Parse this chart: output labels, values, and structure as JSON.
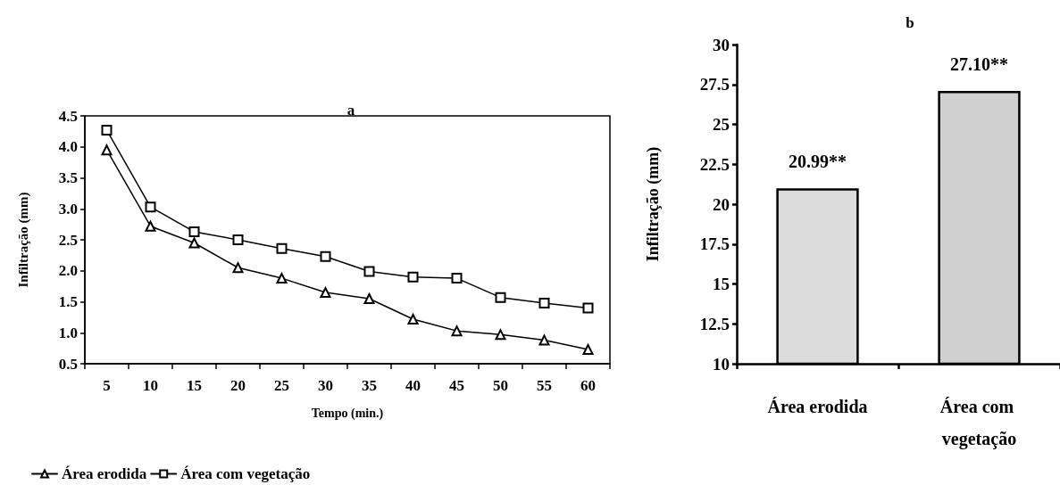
{
  "chart_data": [
    {
      "type": "line",
      "title": "a",
      "xlabel": "Tempo (min.)",
      "ylabel": "Infiltração (mm)",
      "categories": [
        "5",
        "10",
        "15",
        "20",
        "25",
        "30",
        "35",
        "40",
        "45",
        "50",
        "55",
        "60"
      ],
      "series": [
        {
          "name": "Área erodida",
          "color": "#000000",
          "marker": "triangle",
          "values": [
            3.95,
            2.72,
            2.45,
            2.05,
            1.88,
            1.65,
            1.55,
            1.22,
            1.03,
            0.97,
            0.88,
            0.73
          ]
        },
        {
          "name": "Área com vegetação",
          "color": "#000000",
          "marker": "square",
          "values": [
            4.27,
            3.03,
            2.63,
            2.5,
            2.36,
            2.23,
            1.99,
            1.9,
            1.88,
            1.57,
            1.48,
            1.4
          ]
        }
      ],
      "ylim": [
        0.5,
        4.5
      ],
      "yticks": [
        0.5,
        {
          "value": 1,
          "label": "1.0"
        },
        1.5,
        {
          "value": 2,
          "label": "2.0"
        },
        2.5,
        {
          "value": 3,
          "label": "3.0"
        },
        3.5,
        {
          "value": 4,
          "label": "4.0"
        },
        4.5
      ],
      "grid": false,
      "legend": "bottom",
      "line_style": "solid"
    },
    {
      "type": "bar",
      "title": "b",
      "ylabel": "Infiltração (mm)",
      "categories": [
        "Área erodida",
        "Área com vegetação"
      ],
      "values": [
        20.99,
        27.1
      ],
      "colors": [
        "#dcdcdc",
        "#d0d0d0"
      ],
      "value_labels": [
        "20.99**",
        "27.10**"
      ],
      "ylim": [
        10,
        30
      ],
      "yticks": [
        10,
        12.5,
        15,
        17.5,
        20,
        22.5,
        25,
        27.5,
        30
      ],
      "grid": false,
      "legend": false
    }
  ]
}
